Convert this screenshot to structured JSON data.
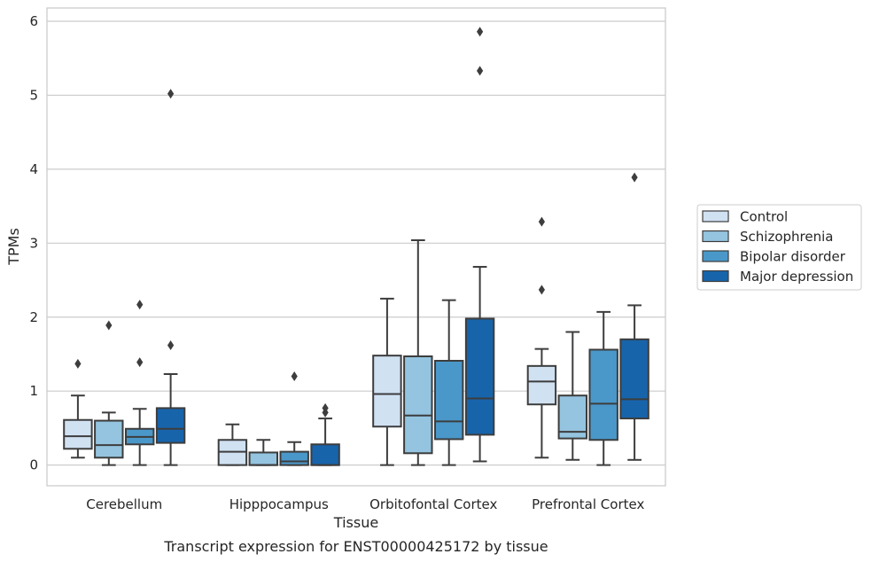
{
  "caption": "Transcript expression for ENST00000425172 by tissue",
  "chart_data": {
    "type": "box",
    "xlabel": "Tissue",
    "ylabel": "TPMs",
    "ylim": [
      -0.28,
      6.18
    ],
    "yticks": [
      0,
      1,
      2,
      3,
      4,
      5,
      6
    ],
    "grid": true,
    "legend_position": "right",
    "categories": [
      "Cerebellum",
      "Hipppocampus",
      "Orbitofontal Cortex",
      "Prefrontal Cortex"
    ],
    "series": [
      {
        "name": "Control",
        "color": "#d0e1f2",
        "boxes": [
          {
            "whislo": 0.1,
            "q1": 0.22,
            "med": 0.39,
            "q3": 0.61,
            "whishi": 0.94,
            "fliers": [
              1.37
            ]
          },
          {
            "whislo": 0.0,
            "q1": 0.0,
            "med": 0.18,
            "q3": 0.34,
            "whishi": 0.55,
            "fliers": []
          },
          {
            "whislo": 0.0,
            "q1": 0.52,
            "med": 0.96,
            "q3": 1.48,
            "whishi": 2.25,
            "fliers": []
          },
          {
            "whislo": 0.1,
            "q1": 0.82,
            "med": 1.13,
            "q3": 1.34,
            "whishi": 1.57,
            "fliers": [
              2.37,
              3.29
            ]
          }
        ]
      },
      {
        "name": "Schizophrenia",
        "color": "#94c4df",
        "boxes": [
          {
            "whislo": 0.0,
            "q1": 0.1,
            "med": 0.27,
            "q3": 0.6,
            "whishi": 0.71,
            "fliers": [
              1.89
            ]
          },
          {
            "whislo": 0.0,
            "q1": 0.0,
            "med": 0.0,
            "q3": 0.17,
            "whishi": 0.34,
            "fliers": []
          },
          {
            "whislo": 0.0,
            "q1": 0.16,
            "med": 0.67,
            "q3": 1.47,
            "whishi": 3.04,
            "fliers": []
          },
          {
            "whislo": 0.07,
            "q1": 0.36,
            "med": 0.45,
            "q3": 0.94,
            "whishi": 1.8,
            "fliers": []
          }
        ]
      },
      {
        "name": "Bipolar disorder",
        "color": "#4a98c9",
        "boxes": [
          {
            "whislo": 0.0,
            "q1": 0.28,
            "med": 0.38,
            "q3": 0.49,
            "whishi": 0.76,
            "fliers": [
              1.39,
              2.17
            ]
          },
          {
            "whislo": 0.0,
            "q1": 0.0,
            "med": 0.05,
            "q3": 0.18,
            "whishi": 0.31,
            "fliers": [
              1.2
            ]
          },
          {
            "whislo": 0.0,
            "q1": 0.35,
            "med": 0.59,
            "q3": 1.41,
            "whishi": 2.23,
            "fliers": []
          },
          {
            "whislo": 0.0,
            "q1": 0.34,
            "med": 0.83,
            "q3": 1.56,
            "whishi": 2.07,
            "fliers": []
          }
        ]
      },
      {
        "name": "Major depression",
        "color": "#1764ab",
        "boxes": [
          {
            "whislo": 0.0,
            "q1": 0.3,
            "med": 0.49,
            "q3": 0.77,
            "whishi": 1.23,
            "fliers": [
              1.62,
              5.02
            ]
          },
          {
            "whislo": 0.0,
            "q1": 0.0,
            "med": 0.0,
            "q3": 0.28,
            "whishi": 0.63,
            "fliers": [
              0.71,
              0.77
            ]
          },
          {
            "whislo": 0.05,
            "q1": 0.41,
            "med": 0.9,
            "q3": 1.98,
            "whishi": 2.68,
            "fliers": [
              5.33,
              5.86
            ]
          },
          {
            "whislo": 0.07,
            "q1": 0.63,
            "med": 0.89,
            "q3": 1.7,
            "whishi": 2.16,
            "fliers": [
              3.89
            ]
          }
        ]
      }
    ]
  }
}
